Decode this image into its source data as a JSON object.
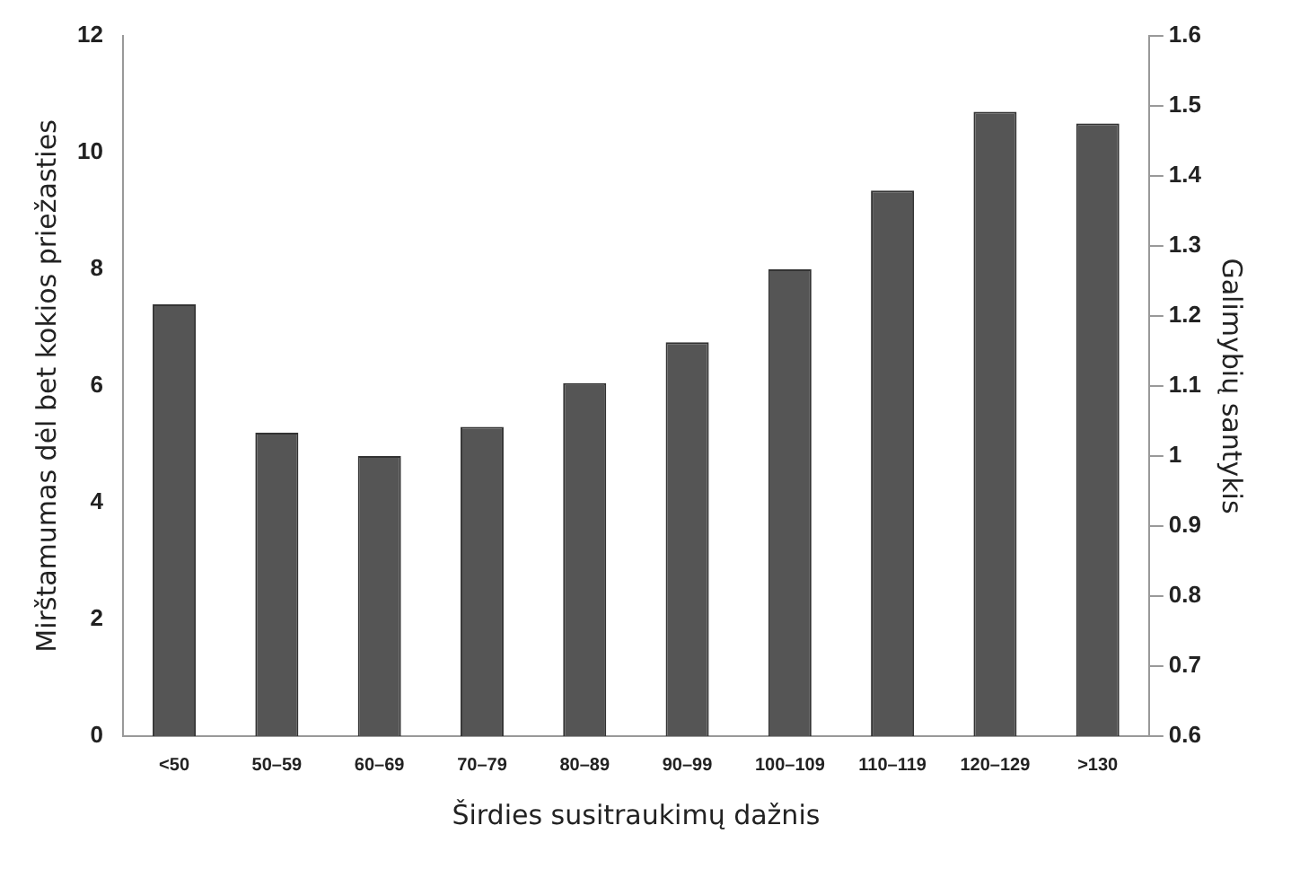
{
  "chart_data": {
    "type": "bar",
    "xlabel": "Širdies susitraukimų dažnis",
    "ylabel": "Mirštamumas dėl bet kokios priežasties",
    "y2label": "Galimybių santykis",
    "categories": [
      "<50",
      "50–59",
      "60–69",
      "70–79",
      "80–89",
      "90–99",
      "100–109",
      "110–119",
      "120–129",
      ">130"
    ],
    "series": [
      {
        "color": "#555555",
        "values": [
          7.4,
          5.2,
          4.8,
          5.3,
          6.05,
          6.75,
          8.0,
          9.35,
          10.7,
          10.5
        ]
      }
    ],
    "ylim": [
      0,
      12
    ],
    "yticks": [
      0,
      2,
      4,
      6,
      8,
      10,
      12
    ],
    "y2lim": [
      0.6,
      1.6
    ],
    "y2ticks": [
      0.6,
      0.7,
      0.8,
      0.9,
      1,
      1.1,
      1.2,
      1.3,
      1.4,
      1.5,
      1.6
    ],
    "grid": false,
    "legend": false
  }
}
